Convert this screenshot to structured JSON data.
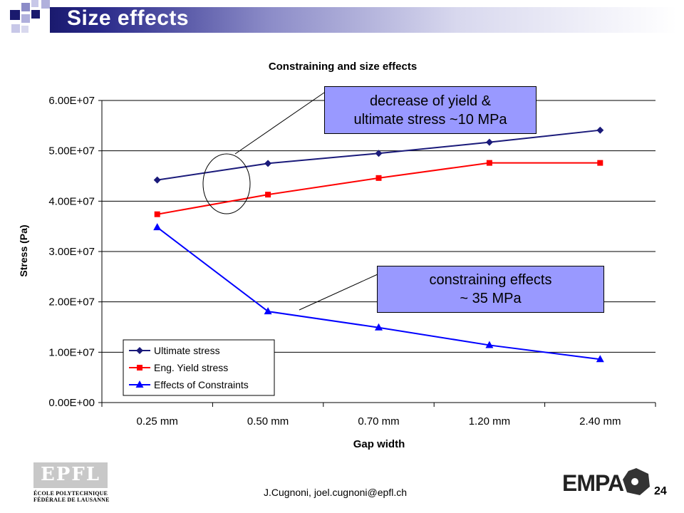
{
  "slide": {
    "title": "Size effects",
    "footer": "J.Cugnoni, joel.cugnoni@epfl.ch",
    "page_number": "24"
  },
  "logos": {
    "epfl_mark": "EPFL",
    "epfl_line1": "ÉCOLE POLYTECHNIQUE",
    "epfl_line2": "FÉDÉRALE DE LAUSANNE",
    "empa": "EMPA"
  },
  "callouts": {
    "top": [
      "decrease of yield &",
      "ultimate stress ~10 MPa"
    ],
    "bottom": [
      "constraining effects",
      "~ 35 MPa"
    ]
  },
  "chart_data": {
    "type": "line",
    "title": "Constraining and size effects",
    "xlabel": "Gap width",
    "ylabel": "Stress (Pa)",
    "categories": [
      "0.25 mm",
      "0.50 mm",
      "0.70 mm",
      "1.20 mm",
      "2.40 mm"
    ],
    "ylim": [
      0,
      60000000
    ],
    "yticks": [
      "0.00E+00",
      "1.00E+07",
      "2.00E+07",
      "3.00E+07",
      "4.00E+07",
      "5.00E+07",
      "6.00E+07"
    ],
    "grid": true,
    "legend_position": "bottom-left",
    "series": [
      {
        "name": "Ultimate stress",
        "color": "#1a1a7a",
        "marker": "diamond",
        "values": [
          44200000,
          47500000,
          49500000,
          51700000,
          54100000
        ]
      },
      {
        "name": "Eng. Yield stress",
        "color": "#ff0000",
        "marker": "square",
        "values": [
          37400000,
          41300000,
          44600000,
          47600000,
          47600000
        ]
      },
      {
        "name": "Effects of Constraints",
        "color": "#0000ff",
        "marker": "triangle",
        "values": [
          34800000,
          18100000,
          14900000,
          11400000,
          8600000
        ]
      }
    ]
  }
}
